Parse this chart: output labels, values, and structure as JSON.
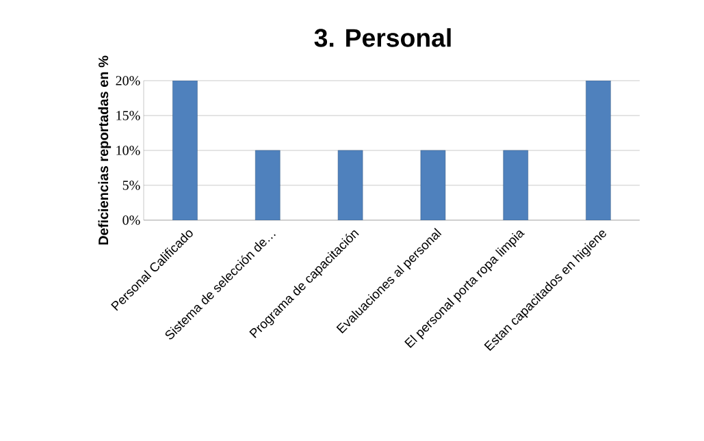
{
  "chart_data": {
    "type": "bar",
    "title": "3. Personal",
    "ylabel": "Deficiencias reportadas en %",
    "categories": [
      "Personal Calificado",
      "Sistema de selección de…",
      "Programa de capacitación",
      "Evaluaciones al personal",
      "El personal porta ropa limpia",
      "Estan capacitados en higiene"
    ],
    "values": [
      20,
      10,
      10,
      10,
      10,
      20
    ],
    "color": "#4f81bd",
    "ylim": [
      0,
      20
    ],
    "yticks": [
      {
        "value": 0,
        "label": "0%"
      },
      {
        "value": 5,
        "label": "5%"
      },
      {
        "value": 10,
        "label": "10%"
      },
      {
        "value": 15,
        "label": "15%"
      },
      {
        "value": 20,
        "label": "20%"
      }
    ],
    "grid": "y"
  }
}
